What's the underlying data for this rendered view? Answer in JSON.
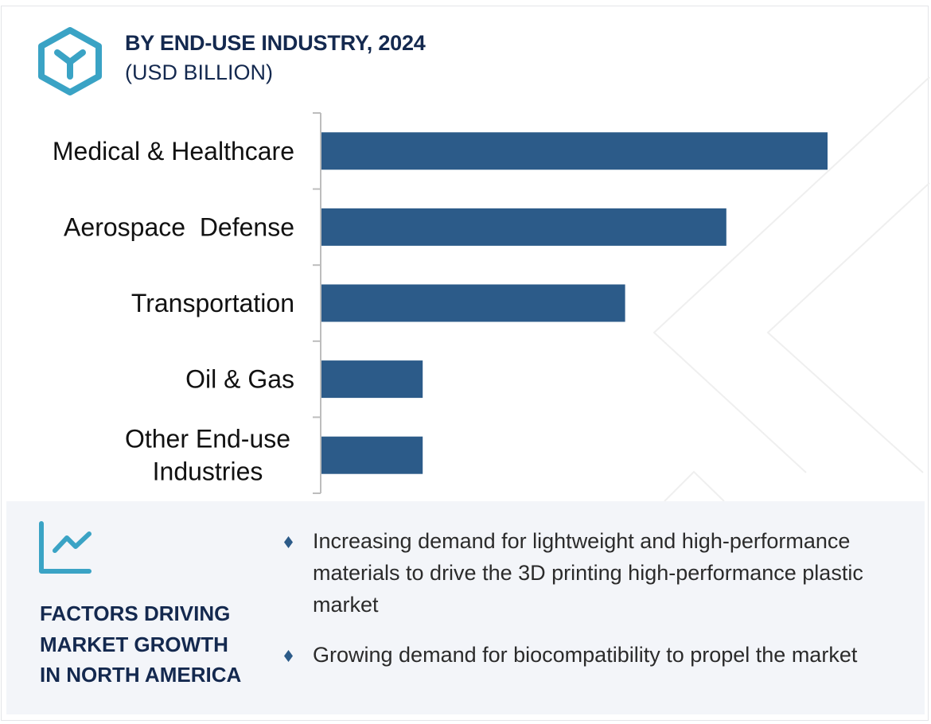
{
  "header": {
    "title": "BY END-USE INDUSTRY, 2024",
    "subtitle": "(USD BILLION)",
    "icon": "hexagon-y-logo-icon"
  },
  "colors": {
    "bar": "#2c5b89",
    "title": "#14294f",
    "accent": "#3aa3c5",
    "panel_bg": "#f3f5f9",
    "axis": "#bdbdbd",
    "body_text": "#2b2b2b"
  },
  "chart_data": {
    "type": "bar",
    "orientation": "horizontal",
    "title": "BY END-USE INDUSTRY, 2024",
    "subtitle": "(USD BILLION)",
    "categories": [
      "Medical & Healthcare",
      "Aerospace  Defense",
      "Transportation",
      "Oil & Gas",
      "Other End-use Industries"
    ],
    "category_lines": [
      [
        "Medical & Healthcare"
      ],
      [
        "Aerospace  Defense"
      ],
      [
        "Transportation"
      ],
      [
        "Oil & Gas"
      ],
      [
        "Other End-use",
        "Industries"
      ]
    ],
    "values": [
      1.0,
      0.8,
      0.6,
      0.2,
      0.2
    ],
    "value_units": "relative to largest bar (no values or value axis shown)",
    "xlabel": "",
    "ylabel": "",
    "xlim": [
      0,
      1.0
    ],
    "grid": false,
    "legend": "none"
  },
  "factors": {
    "icon": "trend-chart-icon",
    "title_lines": [
      "FACTORS DRIVING",
      "MARKET GROWTH",
      "IN NORTH AMERICA"
    ],
    "bullet_icon": "diamond-bullet-icon",
    "bullets": [
      "Increasing demand for lightweight and high-performance materials to drive the 3D printing high-performance plastic market",
      "Growing demand for biocompatibility to propel the market"
    ]
  }
}
